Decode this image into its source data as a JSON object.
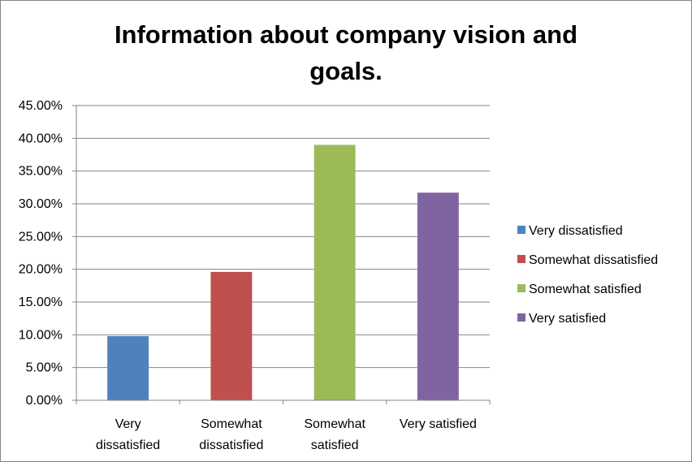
{
  "chart_data": {
    "type": "bar",
    "title_lines": [
      "Information about company vision and",
      "goals."
    ],
    "categories": [
      [
        "Very",
        "dissatisfied"
      ],
      [
        "Somewhat",
        "dissatisfied"
      ],
      [
        "Somewhat",
        "satisfied"
      ],
      [
        "Very satisfied"
      ]
    ],
    "values": [
      0.098,
      0.196,
      0.39,
      0.317
    ],
    "y_ticks": [
      "0.00%",
      "5.00%",
      "10.00%",
      "15.00%",
      "20.00%",
      "25.00%",
      "30.00%",
      "35.00%",
      "40.00%",
      "45.00%"
    ],
    "ylim": [
      0,
      0.45
    ],
    "grid": true,
    "legend_position": "right",
    "legend": [
      {
        "label": "Very dissatisfied",
        "color": "#4F81BD"
      },
      {
        "label": "Somewhat dissatisfied",
        "color": "#C0504D"
      },
      {
        "label": "Somewhat satisfied",
        "color": "#9BBB59"
      },
      {
        "label": "Very satisfied",
        "color": "#8064A2"
      }
    ],
    "colors": [
      "#4F81BD",
      "#C0504D",
      "#9BBB59",
      "#8064A2"
    ]
  }
}
